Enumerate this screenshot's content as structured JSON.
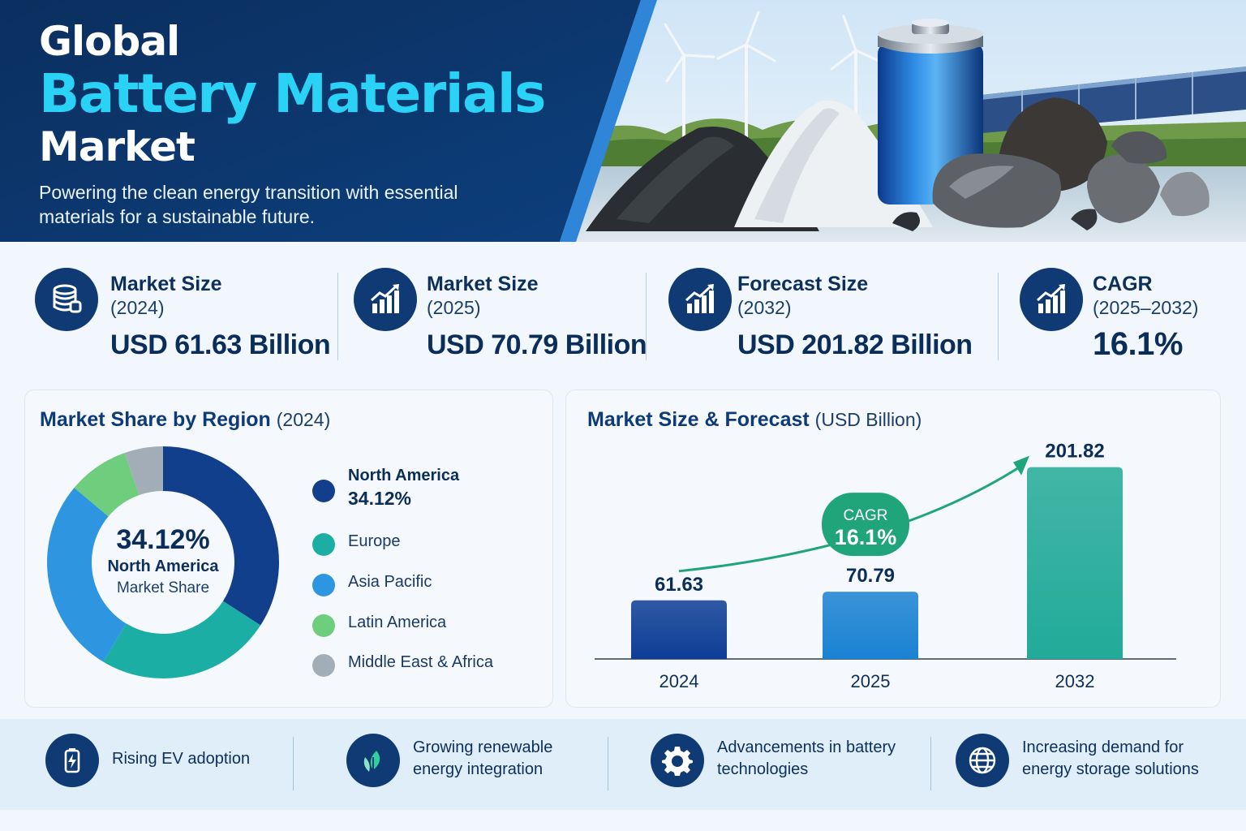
{
  "header": {
    "title_line1": "Global",
    "title_line2": "Battery Materials",
    "title_line3": "Market",
    "subtitle": "Powering the clean energy transition with essential materials for a sustainable future."
  },
  "stats": [
    {
      "label": "Market Size",
      "sub": "(2024)",
      "value": "USD 61.63 Billion",
      "icon": "database-icon"
    },
    {
      "label": "Market Size",
      "sub": "(2025)",
      "value": "USD 70.79 Billion",
      "icon": "growth-chart-icon"
    },
    {
      "label": "Forecast Size",
      "sub": "(2032)",
      "value": "USD 201.82 Billion",
      "icon": "growth-chart-icon"
    },
    {
      "label": "CAGR",
      "sub": "(2025–2032)",
      "value": "16.1%",
      "icon": "growth-chart-icon"
    }
  ],
  "chart_data": [
    {
      "type": "pie",
      "title": "Market Share by Region",
      "subtitle": "(2024)",
      "categories": [
        "North America",
        "Europe",
        "Asia Pacific",
        "Latin America",
        "Middle East & Africa"
      ],
      "values": [
        34.12,
        24.5,
        27.5,
        8.5,
        5.38
      ],
      "colors": [
        "#113f8c",
        "#1aaea4",
        "#2e96e0",
        "#6fce7e",
        "#a3adb7"
      ],
      "legend_value": "34.12%",
      "center": {
        "value": "34.12%",
        "line1": "North America",
        "line2": "Market Share"
      },
      "legend": "right"
    },
    {
      "type": "bar",
      "title": "Market Size & Forecast",
      "subtitle": "(USD Billion)",
      "categories": [
        "2024",
        "2025",
        "2032"
      ],
      "values": [
        61.63,
        70.79,
        201.82
      ],
      "labels": [
        "61.63",
        "70.79",
        "201.82"
      ],
      "colors": [
        "#0d3d95",
        "#1a82d2",
        "#22aa98"
      ],
      "ylim": [
        0,
        210
      ],
      "annotation": {
        "label": "CAGR",
        "value": "16.1%",
        "color": "#20a57a"
      }
    }
  ],
  "footer": [
    {
      "text": "Rising EV adoption",
      "icon": "battery-charge-icon"
    },
    {
      "text": "Growing renewable energy integration",
      "icon": "leaf-icon"
    },
    {
      "text": "Advancements in battery technologies",
      "icon": "gear-icon"
    },
    {
      "text": "Increasing demand for energy storage solutions",
      "icon": "globe-icon"
    }
  ]
}
